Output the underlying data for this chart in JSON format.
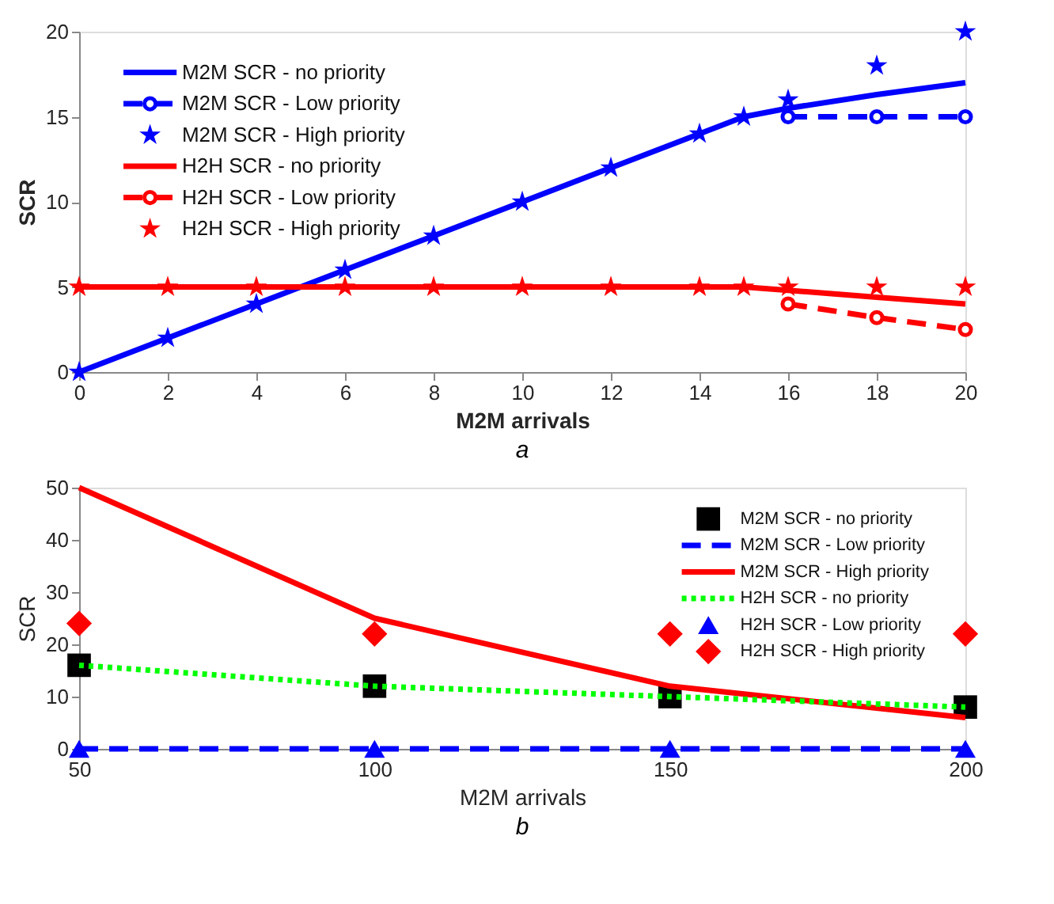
{
  "chart_data": [
    {
      "type": "line",
      "xlabel": "M2M arrivals",
      "ylabel": "SCR",
      "annotations": [
        "a"
      ],
      "xlim": [
        0,
        20
      ],
      "ylim": [
        0,
        20
      ],
      "xticks": [
        0,
        2,
        4,
        6,
        8,
        10,
        12,
        14,
        16,
        18,
        20
      ],
      "yticks": [
        0,
        5,
        10,
        15,
        20
      ],
      "grid": false,
      "legend": "top left",
      "series": [
        {
          "name": "M2M SCR - no priority",
          "color": "#0000ff",
          "line_style": "solid",
          "marker": "none",
          "x": [
            0,
            2,
            4,
            6,
            8,
            10,
            12,
            14,
            15,
            16,
            18,
            20
          ],
          "values": [
            0,
            2,
            4,
            6,
            8,
            10,
            12,
            14,
            15,
            15.5,
            16.3,
            17
          ]
        },
        {
          "name": "M2M SCR - Low priority",
          "color": "#0000ff",
          "line_style": "dashed",
          "marker": "circle",
          "x": [
            16,
            18,
            20
          ],
          "values": [
            15,
            15,
            15
          ]
        },
        {
          "name": "M2M SCR - High priority",
          "type": "scatter",
          "color": "#0000ff",
          "marker": "star",
          "x": [
            0,
            2,
            4,
            6,
            8,
            10,
            12,
            14,
            15,
            16,
            18,
            20
          ],
          "values": [
            0,
            2,
            4,
            6,
            8,
            10,
            12,
            14,
            15,
            16,
            18,
            20
          ]
        },
        {
          "name": "H2H SCR - no priority",
          "color": "#ff0000",
          "line_style": "solid",
          "marker": "none",
          "x": [
            0,
            2,
            4,
            6,
            8,
            10,
            12,
            14,
            15,
            16,
            18,
            20
          ],
          "values": [
            5,
            5,
            5,
            5,
            5,
            5,
            5,
            5,
            5,
            4.8,
            4.4,
            4
          ]
        },
        {
          "name": "H2H SCR - Low priority",
          "color": "#ff0000",
          "line_style": "dashed",
          "marker": "circle",
          "x": [
            16,
            18,
            20
          ],
          "values": [
            4,
            3.2,
            2.5
          ]
        },
        {
          "name": "H2H SCR - High priority",
          "type": "scatter",
          "color": "#ff0000",
          "marker": "star",
          "x": [
            0,
            2,
            4,
            6,
            8,
            10,
            12,
            14,
            15,
            16,
            18,
            20
          ],
          "values": [
            5,
            5,
            5,
            5,
            5,
            5,
            5,
            5,
            5,
            5,
            5,
            5
          ]
        }
      ]
    },
    {
      "type": "line",
      "xlabel": "M2M arrivals",
      "ylabel": "SCR",
      "annotations": [
        "b"
      ],
      "x": [
        50,
        100,
        150,
        200
      ],
      "xlim": [
        50,
        200
      ],
      "ylim": [
        0,
        50
      ],
      "xticks": [
        50,
        100,
        150,
        200
      ],
      "yticks": [
        0,
        10,
        20,
        30,
        40,
        50
      ],
      "grid": false,
      "legend": "top right",
      "series": [
        {
          "name": "M2M SCR - no priority",
          "type": "scatter",
          "color": "#000000",
          "marker": "square",
          "values": [
            16,
            12,
            10,
            8
          ]
        },
        {
          "name": "M2M SCR - Low priority",
          "color": "#0000ff",
          "line_style": "dashed",
          "marker": "none",
          "values": [
            0,
            0,
            0,
            0
          ]
        },
        {
          "name": "M2M SCR - High priority",
          "color": "#ff0000",
          "line_style": "solid",
          "marker": "none",
          "values": [
            50,
            25,
            12,
            6
          ]
        },
        {
          "name": "H2H SCR - no priority",
          "color": "#00ff00",
          "line_style": "dotted",
          "marker": "none",
          "values": [
            16,
            12,
            10,
            8
          ]
        },
        {
          "name": "H2H SCR - Low priority",
          "type": "scatter",
          "color": "#0000ff",
          "marker": "triangle",
          "values": [
            0,
            0,
            0,
            0
          ]
        },
        {
          "name": "H2H SCR - High priority",
          "type": "scatter",
          "color": "#ff0000",
          "marker": "diamond",
          "values": [
            24,
            22,
            22,
            22
          ]
        }
      ]
    }
  ]
}
